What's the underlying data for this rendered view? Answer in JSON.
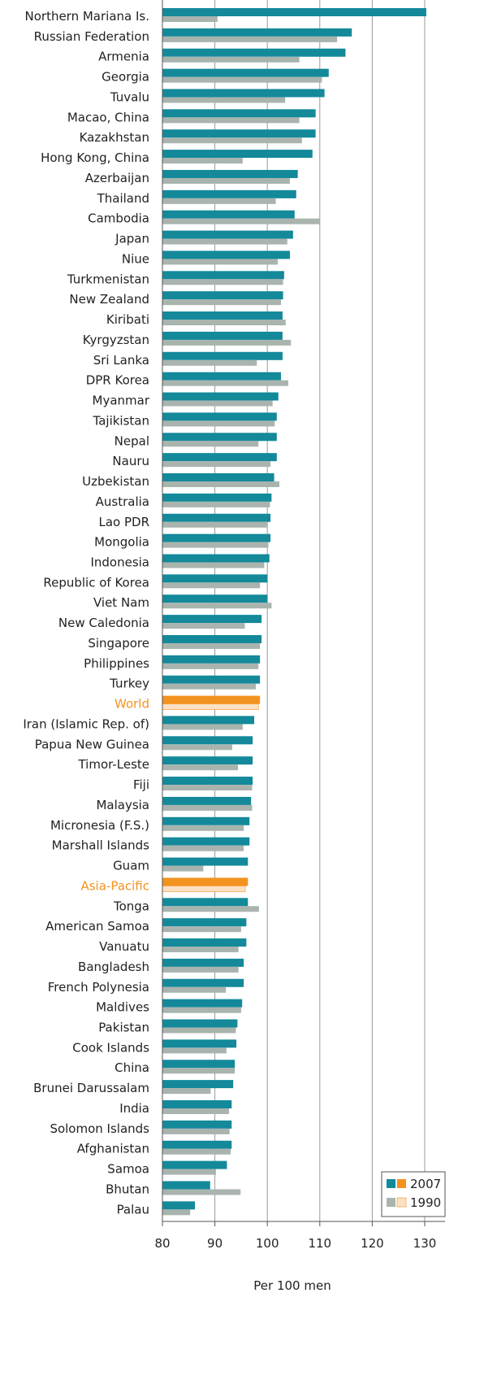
{
  "chart_data": {
    "type": "bar",
    "orientation": "horizontal",
    "title": "",
    "xlabel": "Per 100 men",
    "ylabel": "",
    "xlim": [
      80,
      130
    ],
    "xticks": [
      80,
      90,
      100,
      110,
      120,
      130
    ],
    "grid": "vertical",
    "legend_position": "bottom-right",
    "categories": [
      "Northern Mariana Is.",
      "Russian Federation",
      "Armenia",
      "Georgia",
      "Tuvalu",
      "Macao, China",
      "Kazakhstan",
      "Hong Kong, China",
      "Azerbaijan",
      "Thailand",
      "Cambodia",
      "Japan",
      "Niue",
      "Turkmenistan",
      "New Zealand",
      "Kiribati",
      "Kyrgyzstan",
      "Sri Lanka",
      "DPR Korea",
      "Myanmar",
      "Tajikistan",
      "Nepal",
      "Nauru",
      "Uzbekistan",
      "Australia",
      "Lao PDR",
      "Mongolia",
      "Indonesia",
      "Republic of Korea",
      "Viet Nam",
      "New Caledonia",
      "Singapore",
      "Philippines",
      "Turkey",
      "World",
      "Iran (Islamic Rep. of)",
      "Papua New Guinea",
      "Timor-Leste",
      "Fiji",
      "Malaysia",
      "Micronesia (F.S.)",
      "Marshall Islands",
      "Guam",
      "Asia-Pacific",
      "Tonga",
      "American Samoa",
      "Vanuatu",
      "Bangladesh",
      "French Polynesia",
      "Maldives",
      "Pakistan",
      "Cook Islands",
      "China",
      "Brunei Darussalam",
      "India",
      "Solomon Islands",
      "Afghanistan",
      "Samoa",
      "Bhutan",
      "Palau"
    ],
    "highlighted_categories": [
      "World",
      "Asia-Pacific"
    ],
    "series": [
      {
        "name": "2007",
        "values": [
          130.3,
          116.1,
          114.9,
          111.7,
          110.9,
          109.2,
          109.2,
          108.6,
          105.8,
          105.5,
          105.2,
          104.9,
          104.3,
          103.2,
          103.0,
          102.9,
          102.9,
          102.9,
          102.6,
          102.1,
          101.8,
          101.8,
          101.8,
          101.3,
          100.8,
          100.6,
          100.6,
          100.4,
          100.0,
          100.0,
          98.9,
          98.9,
          98.6,
          98.6,
          98.6,
          97.5,
          97.2,
          97.2,
          97.2,
          96.9,
          96.6,
          96.6,
          96.3,
          96.3,
          96.3,
          96.0,
          96.0,
          95.5,
          95.5,
          95.2,
          94.3,
          94.1,
          93.8,
          93.5,
          93.2,
          93.2,
          93.2,
          92.3,
          89.1,
          86.2
        ]
      },
      {
        "name": "1990",
        "values": [
          90.5,
          113.3,
          106.1,
          110.4,
          103.4,
          106.1,
          106.6,
          95.3,
          104.3,
          101.6,
          110.0,
          103.8,
          102.0,
          103.0,
          102.6,
          103.5,
          104.5,
          98.0,
          104.0,
          101.0,
          101.4,
          98.3,
          100.6,
          102.3,
          100.5,
          99.9,
          100.2,
          99.4,
          98.6,
          100.8,
          95.7,
          98.6,
          98.3,
          97.8,
          98.3,
          95.3,
          93.3,
          94.4,
          97.1,
          97.1,
          95.5,
          95.5,
          87.8,
          95.8,
          98.4,
          95.0,
          94.5,
          94.5,
          92.1,
          95.0,
          94.0,
          92.2,
          93.8,
          89.2,
          92.7,
          92.8,
          93.0,
          90.2,
          94.9,
          85.3
        ]
      }
    ],
    "colors": {
      "series_2007": "#13899a",
      "series_1990": "#a9b4ae",
      "highlight_2007": "#f2921f",
      "highlight_1990": "#fde0c4",
      "highlight_label": "#f2921f",
      "label": "#222222",
      "axis": "#555555",
      "grid": "#999999"
    }
  }
}
